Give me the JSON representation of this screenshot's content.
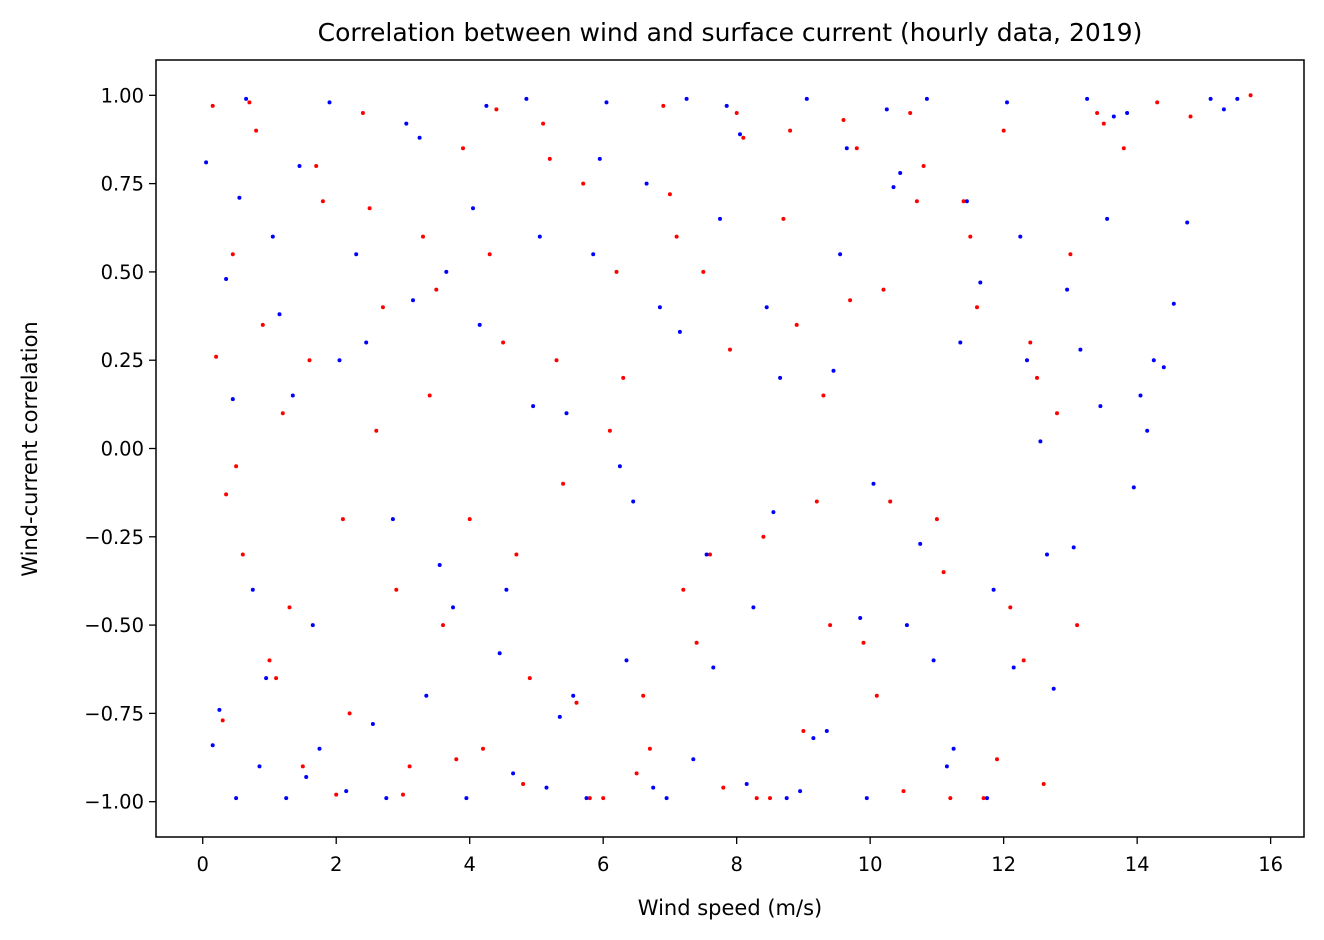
{
  "chart_data": {
    "type": "scatter",
    "title": "Correlation between wind and surface current (hourly data, 2019)",
    "xlabel": "Wind speed (m/s)",
    "ylabel": "Wind-current correlation",
    "xlim": [
      -0.7,
      16.5
    ],
    "ylim": [
      -1.1,
      1.1
    ],
    "xticks": [
      0,
      2,
      4,
      6,
      8,
      10,
      12,
      14,
      16
    ],
    "xtick_labels": [
      "0",
      "2",
      "4",
      "6",
      "8",
      "10",
      "12",
      "14",
      "16"
    ],
    "yticks": [
      1.0,
      0.75,
      0.5,
      0.25,
      0.0,
      -0.25,
      -0.5,
      -0.75,
      -1.0
    ],
    "ytick_labels": [
      "1.00",
      "0.75",
      "0.50",
      "0.25",
      "0.00",
      "−0.25",
      "−0.50",
      "−0.75",
      "−1.00"
    ],
    "grid": false,
    "legend": "none",
    "series": [
      {
        "color": "#ff0000",
        "marker_size": 2,
        "x": [
          0.15,
          0.3,
          0.45,
          0.6,
          0.8,
          1.0,
          1.2,
          1.5,
          1.8,
          2.1,
          2.4,
          2.7,
          3.0,
          3.3,
          3.6,
          3.9,
          4.2,
          4.5,
          4.8,
          5.1,
          5.4,
          5.7,
          6.0,
          6.3,
          6.6,
          6.9,
          7.2,
          7.5,
          7.8,
          8.1,
          8.4,
          8.7,
          9.0,
          9.3,
          9.6,
          9.9,
          10.2,
          10.5,
          10.8,
          11.1,
          11.4,
          11.7,
          12.0,
          12.3,
          12.6,
          13.0,
          13.4,
          13.8,
          14.3,
          14.8,
          15.7,
          0.2,
          0.5,
          0.9,
          1.3,
          1.7,
          2.2,
          2.6,
          3.1,
          3.5,
          4.0,
          4.4,
          4.9,
          5.3,
          5.8,
          6.2,
          6.7,
          7.1,
          7.6,
          8.0,
          8.5,
          8.9,
          9.4,
          9.8,
          10.3,
          10.7,
          11.2,
          11.6,
          12.1,
          12.5,
          13.1,
          0.35,
          0.7,
          1.1,
          1.6,
          2.0,
          2.5,
          2.9,
          3.4,
          3.8,
          4.3,
          4.7,
          5.2,
          5.6,
          6.1,
          6.5,
          7.0,
          7.4,
          7.9,
          8.3,
          8.8,
          9.2,
          9.7,
          10.1,
          10.6,
          11.0,
          11.5,
          11.9,
          12.4,
          12.8,
          13.5
        ],
        "y": [
          0.97,
          -0.77,
          0.55,
          -0.3,
          0.9,
          -0.6,
          0.1,
          -0.9,
          0.7,
          -0.2,
          0.95,
          0.4,
          -0.98,
          0.6,
          -0.5,
          0.85,
          -0.85,
          0.3,
          -0.95,
          0.92,
          -0.1,
          0.75,
          -0.99,
          0.2,
          -0.7,
          0.97,
          -0.4,
          0.5,
          -0.96,
          0.88,
          -0.25,
          0.65,
          -0.8,
          0.15,
          0.93,
          -0.55,
          0.45,
          -0.97,
          0.8,
          -0.35,
          0.7,
          -0.99,
          0.9,
          -0.6,
          -0.95,
          0.55,
          0.95,
          0.85,
          0.98,
          0.94,
          1.0,
          0.26,
          -0.05,
          0.35,
          -0.45,
          0.8,
          -0.75,
          0.05,
          -0.9,
          0.45,
          -0.2,
          0.96,
          -0.65,
          0.25,
          -0.99,
          0.5,
          -0.85,
          0.6,
          -0.3,
          0.95,
          -0.99,
          0.35,
          -0.5,
          0.85,
          -0.15,
          0.7,
          -0.99,
          0.4,
          -0.45,
          0.2,
          -0.5,
          -0.13,
          0.98,
          -0.65,
          0.25,
          -0.98,
          0.68,
          -0.4,
          0.15,
          -0.88,
          0.55,
          -0.3,
          0.82,
          -0.72,
          0.05,
          -0.92,
          0.72,
          -0.55,
          0.28,
          -0.99,
          0.9,
          -0.15,
          0.42,
          -0.7,
          0.95,
          -0.2,
          0.6,
          -0.88,
          0.3,
          0.1,
          0.92
        ]
      },
      {
        "color": "#0000ff",
        "marker_size": 2,
        "x": [
          0.05,
          0.15,
          0.35,
          0.5,
          0.65,
          0.85,
          1.05,
          1.25,
          1.45,
          1.65,
          1.9,
          2.15,
          2.45,
          2.75,
          3.05,
          3.35,
          3.65,
          3.95,
          4.25,
          4.55,
          4.85,
          5.15,
          5.45,
          5.75,
          6.05,
          6.35,
          6.65,
          6.95,
          7.25,
          7.55,
          7.85,
          8.15,
          8.45,
          8.75,
          9.05,
          9.35,
          9.65,
          9.95,
          10.25,
          10.55,
          10.85,
          11.15,
          11.45,
          11.75,
          12.05,
          12.35,
          12.65,
          12.95,
          13.25,
          13.55,
          13.85,
          14.15,
          14.4,
          14.55,
          14.75,
          15.1,
          15.3,
          15.5,
          0.25,
          0.55,
          0.95,
          1.35,
          1.75,
          2.3,
          2.85,
          3.25,
          3.75,
          4.15,
          4.65,
          5.05,
          5.55,
          5.95,
          6.45,
          6.85,
          7.35,
          7.75,
          8.25,
          8.65,
          9.15,
          9.55,
          10.05,
          10.45,
          10.95,
          11.35,
          11.85,
          12.25,
          12.75,
          13.15,
          13.65,
          14.05,
          0.45,
          0.75,
          1.15,
          1.55,
          2.05,
          2.55,
          3.15,
          3.55,
          4.05,
          4.45,
          4.95,
          5.35,
          5.85,
          6.25,
          6.75,
          7.15,
          7.65,
          8.05,
          8.55,
          8.95,
          9.45,
          9.85,
          10.35,
          10.75,
          11.25,
          11.65,
          12.15,
          12.55,
          13.05,
          13.45,
          13.95,
          14.25
        ],
        "y": [
          0.81,
          -0.84,
          0.48,
          -0.99,
          0.99,
          -0.9,
          0.6,
          -0.99,
          0.8,
          -0.5,
          0.98,
          -0.97,
          0.3,
          -0.99,
          0.92,
          -0.7,
          0.5,
          -0.99,
          0.97,
          -0.4,
          0.99,
          -0.96,
          0.1,
          -0.99,
          0.98,
          -0.6,
          0.75,
          -0.99,
          0.99,
          -0.3,
          0.97,
          -0.95,
          0.4,
          -0.99,
          0.99,
          -0.8,
          0.85,
          -0.99,
          0.96,
          -0.5,
          0.99,
          -0.9,
          0.7,
          -0.99,
          0.98,
          0.25,
          -0.3,
          0.45,
          0.99,
          0.65,
          0.95,
          0.05,
          0.23,
          0.41,
          0.64,
          0.99,
          0.96,
          0.99,
          -0.74,
          0.71,
          -0.65,
          0.15,
          -0.85,
          0.55,
          -0.2,
          0.88,
          -0.45,
          0.35,
          -0.92,
          0.6,
          -0.7,
          0.82,
          -0.15,
          0.4,
          -0.88,
          0.65,
          -0.45,
          0.2,
          -0.82,
          0.55,
          -0.1,
          0.78,
          -0.6,
          0.3,
          -0.4,
          0.6,
          -0.68,
          0.28,
          0.94,
          0.15,
          0.14,
          -0.4,
          0.38,
          -0.93,
          0.25,
          -0.78,
          0.42,
          -0.33,
          0.68,
          -0.58,
          0.12,
          -0.76,
          0.55,
          -0.05,
          -0.96,
          0.33,
          -0.62,
          0.89,
          -0.18,
          -0.97,
          0.22,
          -0.48,
          0.74,
          -0.27,
          -0.85,
          0.47,
          -0.62,
          0.02,
          -0.28,
          0.12,
          -0.11,
          0.25
        ]
      }
    ]
  }
}
